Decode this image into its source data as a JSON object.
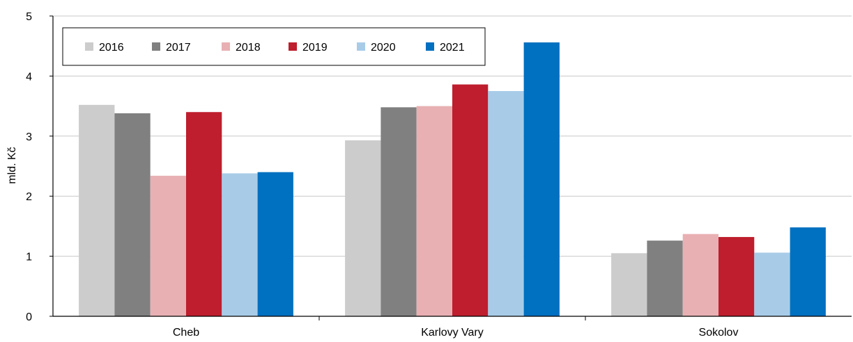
{
  "chart_data": {
    "type": "bar",
    "ylabel": "mld. Kč",
    "xlabel": "",
    "ylim": [
      0,
      5
    ],
    "yticks": [
      "0",
      "1",
      "2",
      "3",
      "4",
      "5"
    ],
    "grid": true,
    "legend_position": "top-left",
    "categories": [
      "Cheb",
      "Karlovy Vary",
      "Sokolov"
    ],
    "series": [
      {
        "name": "2016",
        "color": "#cccccc",
        "values": [
          3.52,
          2.93,
          1.05
        ]
      },
      {
        "name": "2017",
        "color": "#808080",
        "values": [
          3.38,
          3.48,
          1.26
        ]
      },
      {
        "name": "2018",
        "color": "#e8b0b3",
        "values": [
          2.34,
          3.5,
          1.37
        ]
      },
      {
        "name": "2019",
        "color": "#be1e2d",
        "values": [
          3.4,
          3.86,
          1.32
        ]
      },
      {
        "name": "2020",
        "color": "#a8cce8",
        "values": [
          2.38,
          3.75,
          1.06
        ]
      },
      {
        "name": "2021",
        "color": "#0070c0",
        "values": [
          2.4,
          4.56,
          1.48
        ]
      }
    ]
  }
}
